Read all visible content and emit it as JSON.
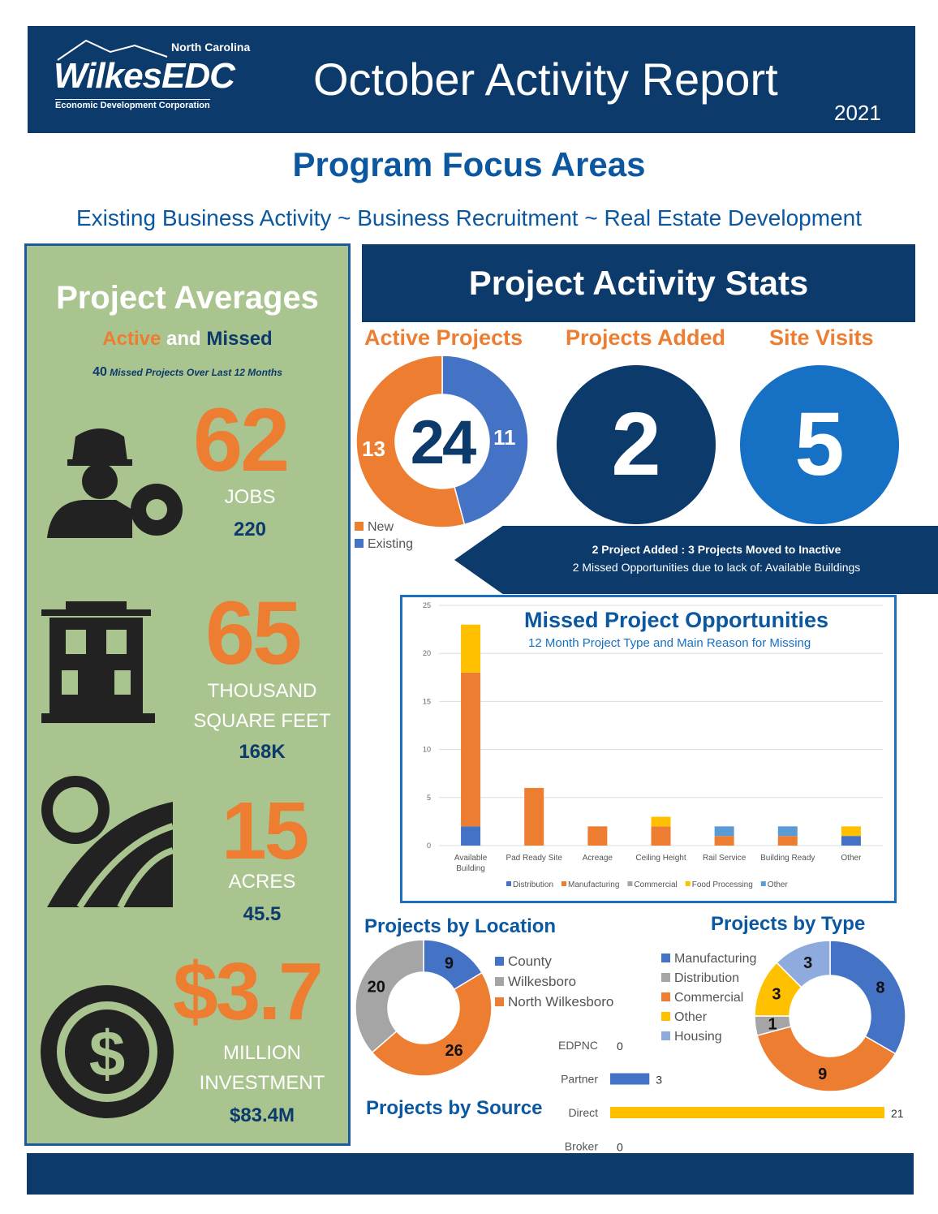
{
  "header": {
    "logo_top": "North Carolina",
    "logo_main": "WilkesEDC",
    "logo_sub": "Economic Development Corporation",
    "title": "October Activity Report",
    "year": "2021"
  },
  "focus": {
    "title": "Program Focus Areas",
    "areas": "Existing Business Activity ~ Business Recruitment ~ Real Estate Development"
  },
  "averages": {
    "title": "Project Averages",
    "subtitle_active": "Active",
    "subtitle_and": " and ",
    "subtitle_missed": "Missed",
    "missed_count": "40",
    "missed_note": " Missed Projects Over Last 12 Months",
    "items": [
      {
        "icon": "worker-gear-icon",
        "big": "62",
        "label": "JOBS",
        "value": "220"
      },
      {
        "icon": "building-icon",
        "big": "65",
        "label": "THOUSAND SQUARE FEET",
        "value": "168K"
      },
      {
        "icon": "sun-field-icon",
        "big": "15",
        "label": "ACRES",
        "value": "45.5"
      },
      {
        "icon": "dollar-icon",
        "big": "$3.7",
        "label": "MILLION INVESTMENT",
        "value": "$83.4M"
      }
    ]
  },
  "stats": {
    "title": "Project Activity Stats",
    "active_label": "Active Projects",
    "active_total": "24",
    "active_new": 13,
    "active_existing": 11,
    "legend_new": "New",
    "legend_existing": "Existing",
    "added_label": "Projects Added",
    "added": "2",
    "visits_label": "Site Visits",
    "visits": "5",
    "callout_line1": "2 Project Added : 3 Projects Moved to Inactive",
    "callout_line2": "2 Missed Opportunities due to lack of: Available Buildings"
  },
  "colors": {
    "navy": "#0b3a6b",
    "orange": "#ed7d31",
    "blue": "#4472c4",
    "gray": "#a5a5a5",
    "yellow": "#ffc000",
    "lightblue": "#5b9bd5",
    "green": "#a9c48f"
  },
  "chart_data": [
    {
      "type": "bar",
      "stacked": true,
      "title": "Missed Project Opportunities",
      "subtitle": "12 Month Project Type and Main Reason for Missing",
      "ylim": [
        0,
        25
      ],
      "yticks": [
        0,
        5,
        10,
        15,
        20,
        25
      ],
      "grid": true,
      "legend": "bottom",
      "categories": [
        "Available Building",
        "Pad Ready Site",
        "Acreage",
        "Ceiling Height",
        "Rail Service",
        "Building Ready",
        "Other"
      ],
      "series": [
        {
          "name": "Distribution",
          "color": "#4472c4",
          "values": [
            2,
            0,
            0,
            0,
            0,
            0,
            1
          ]
        },
        {
          "name": "Manufacturing",
          "color": "#ed7d31",
          "values": [
            16,
            6,
            2,
            2,
            1,
            1,
            0
          ]
        },
        {
          "name": "Commercial",
          "color": "#a5a5a5",
          "values": [
            0,
            0,
            0,
            0,
            0,
            0,
            0
          ]
        },
        {
          "name": "Food Processing",
          "color": "#ffc000",
          "values": [
            5,
            0,
            0,
            1,
            0,
            0,
            1
          ]
        },
        {
          "name": "Other",
          "color": "#5b9bd5",
          "values": [
            0,
            0,
            0,
            0,
            1,
            1,
            0
          ]
        }
      ]
    },
    {
      "type": "pie",
      "donut": true,
      "title": "Projects by Location",
      "legend": "right",
      "slices": [
        {
          "name": "County",
          "value": 9,
          "color": "#4472c4"
        },
        {
          "name": "North Wilkesboro",
          "value": 26,
          "color": "#ed7d31"
        },
        {
          "name": "Wilkesboro",
          "value": 20,
          "color": "#a5a5a5"
        }
      ],
      "legend_order": [
        "County",
        "Wilkesboro",
        "North Wilkesboro"
      ]
    },
    {
      "type": "pie",
      "donut": true,
      "title": "Projects by Type",
      "legend": "left",
      "slices": [
        {
          "name": "Manufacturing",
          "value": 8,
          "color": "#4472c4"
        },
        {
          "name": "Commercial",
          "value": 9,
          "color": "#ed7d31"
        },
        {
          "name": "Distribution",
          "value": 1,
          "color": "#a5a5a5"
        },
        {
          "name": "Other",
          "value": 3,
          "color": "#ffc000"
        },
        {
          "name": "Housing",
          "value": 3,
          "color": "#8faadc"
        }
      ],
      "legend_order": [
        "Manufacturing",
        "Distribution",
        "Commercial",
        "Other",
        "Housing"
      ]
    },
    {
      "type": "bar",
      "orientation": "horizontal",
      "title": "Projects by Source",
      "categories": [
        "EDPNC",
        "Partner",
        "Direct",
        "Broker"
      ],
      "values": [
        0,
        3,
        21,
        0
      ],
      "colors": [
        "#4472c4",
        "#4472c4",
        "#ffc000",
        "#4472c4"
      ]
    }
  ]
}
